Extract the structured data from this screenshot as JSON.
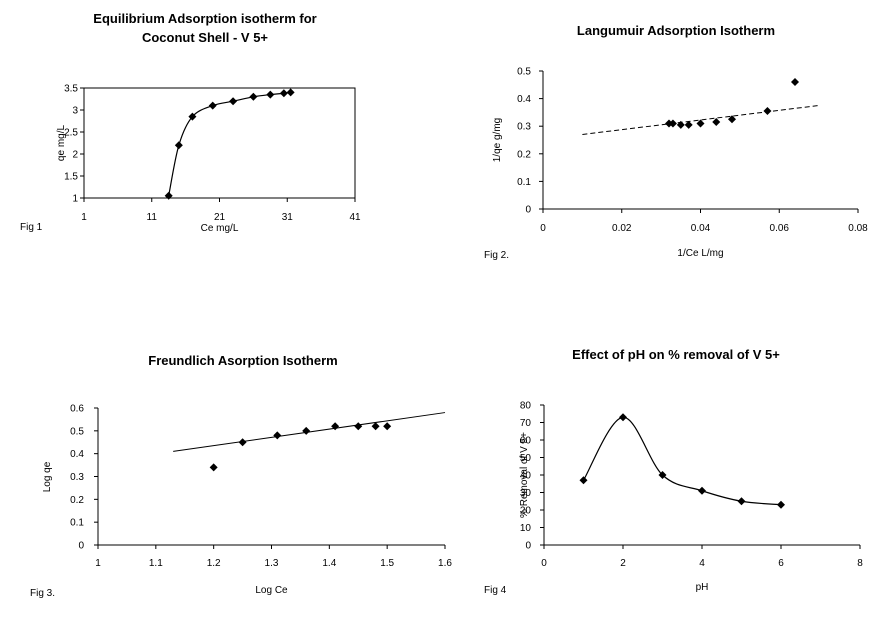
{
  "chart_data": [
    {
      "type": "scatter",
      "fig_label": "Fig 1",
      "title_lines": [
        "Equilibrium Adsorption isotherm for",
        "Coconut Shell - V 5+"
      ],
      "xlabel": "Ce mg/L",
      "ylabel": "qe mg/L",
      "xlim": [
        1,
        41
      ],
      "ylim": [
        1,
        3.5
      ],
      "xticks": [
        1,
        11,
        21,
        31,
        41
      ],
      "yticks": [
        1,
        1.5,
        2,
        2.5,
        3,
        3.5
      ],
      "ytick_labels": [
        "1",
        "1.5",
        "2",
        "2.5",
        "3",
        "3.5"
      ],
      "grid": false,
      "line": "smooth",
      "series": [
        {
          "x": [
            13.5,
            15.0,
            17.0,
            20.0,
            23.0,
            26.0,
            28.5,
            30.5,
            31.5
          ],
          "y": [
            1.05,
            2.2,
            2.85,
            3.1,
            3.2,
            3.3,
            3.35,
            3.38,
            3.4
          ]
        }
      ]
    },
    {
      "type": "scatter",
      "fig_label": "Fig 2.",
      "title_lines": [
        "Langumuir Adsorption Isotherm"
      ],
      "xlabel": "1/Ce L/mg",
      "ylabel": "1/qe g/mg",
      "xlim": [
        0,
        0.08
      ],
      "ylim": [
        0,
        0.5
      ],
      "xticks": [
        0,
        0.02,
        0.04,
        0.06,
        0.08
      ],
      "xtick_labels": [
        "0",
        "0.02",
        "0.04",
        "0.06",
        "0.08"
      ],
      "yticks": [
        0,
        0.1,
        0.2,
        0.3,
        0.4,
        0.5
      ],
      "ytick_labels": [
        "0",
        "0.1",
        "0.2",
        "0.3",
        "0.4",
        "0.5"
      ],
      "grid": false,
      "trendline": {
        "style": "dashed",
        "x": [
          0.01,
          0.07
        ],
        "y": [
          0.27,
          0.375
        ]
      },
      "series": [
        {
          "x": [
            0.032,
            0.033,
            0.035,
            0.037,
            0.04,
            0.044,
            0.048,
            0.057,
            0.064
          ],
          "y": [
            0.31,
            0.31,
            0.305,
            0.305,
            0.31,
            0.315,
            0.325,
            0.355,
            0.46
          ]
        }
      ]
    },
    {
      "type": "scatter",
      "fig_label": "Fig 3.",
      "title_lines": [
        "Freundlich Asorption Isotherm"
      ],
      "xlabel": "Log Ce",
      "ylabel": "Log qe",
      "xlim": [
        1,
        1.6
      ],
      "ylim": [
        0,
        0.6
      ],
      "xticks": [
        1,
        1.1,
        1.2,
        1.3,
        1.4,
        1.5,
        1.6
      ],
      "xtick_labels": [
        "1",
        "1.1",
        "1.2",
        "1.3",
        "1.4",
        "1.5",
        "1.6"
      ],
      "yticks": [
        0,
        0.1,
        0.2,
        0.3,
        0.4,
        0.5,
        0.6
      ],
      "ytick_labels": [
        "0",
        "0.1",
        "0.2",
        "0.3",
        "0.4",
        "0.5",
        "0.6"
      ],
      "grid": false,
      "trendline": {
        "style": "solid",
        "x": [
          1.13,
          1.6
        ],
        "y": [
          0.41,
          0.58
        ]
      },
      "series": [
        {
          "x": [
            1.2,
            1.25,
            1.31,
            1.36,
            1.41,
            1.45,
            1.48,
            1.5
          ],
          "y": [
            0.34,
            0.45,
            0.48,
            0.5,
            0.52,
            0.52,
            0.52,
            0.52
          ]
        }
      ]
    },
    {
      "type": "line",
      "fig_label": "Fig 4",
      "title_lines": [
        "Effect of pH on % removal of V 5+"
      ],
      "xlabel": "pH",
      "ylabel": "% Removal of V 5+",
      "xlim": [
        0,
        8
      ],
      "ylim": [
        0,
        80
      ],
      "xticks": [
        0,
        2,
        4,
        6,
        8
      ],
      "xtick_labels": [
        "0",
        "2",
        "4",
        "6",
        "8"
      ],
      "yticks": [
        0,
        10,
        20,
        30,
        40,
        50,
        60,
        70,
        80
      ],
      "ytick_labels": [
        "0",
        "10",
        "20",
        "30",
        "40",
        "50",
        "60",
        "70",
        "80"
      ],
      "grid": false,
      "line": "smooth",
      "series": [
        {
          "x": [
            1,
            2,
            3,
            4,
            5,
            6
          ],
          "y": [
            37,
            73,
            40,
            31,
            25,
            23
          ]
        }
      ]
    }
  ]
}
